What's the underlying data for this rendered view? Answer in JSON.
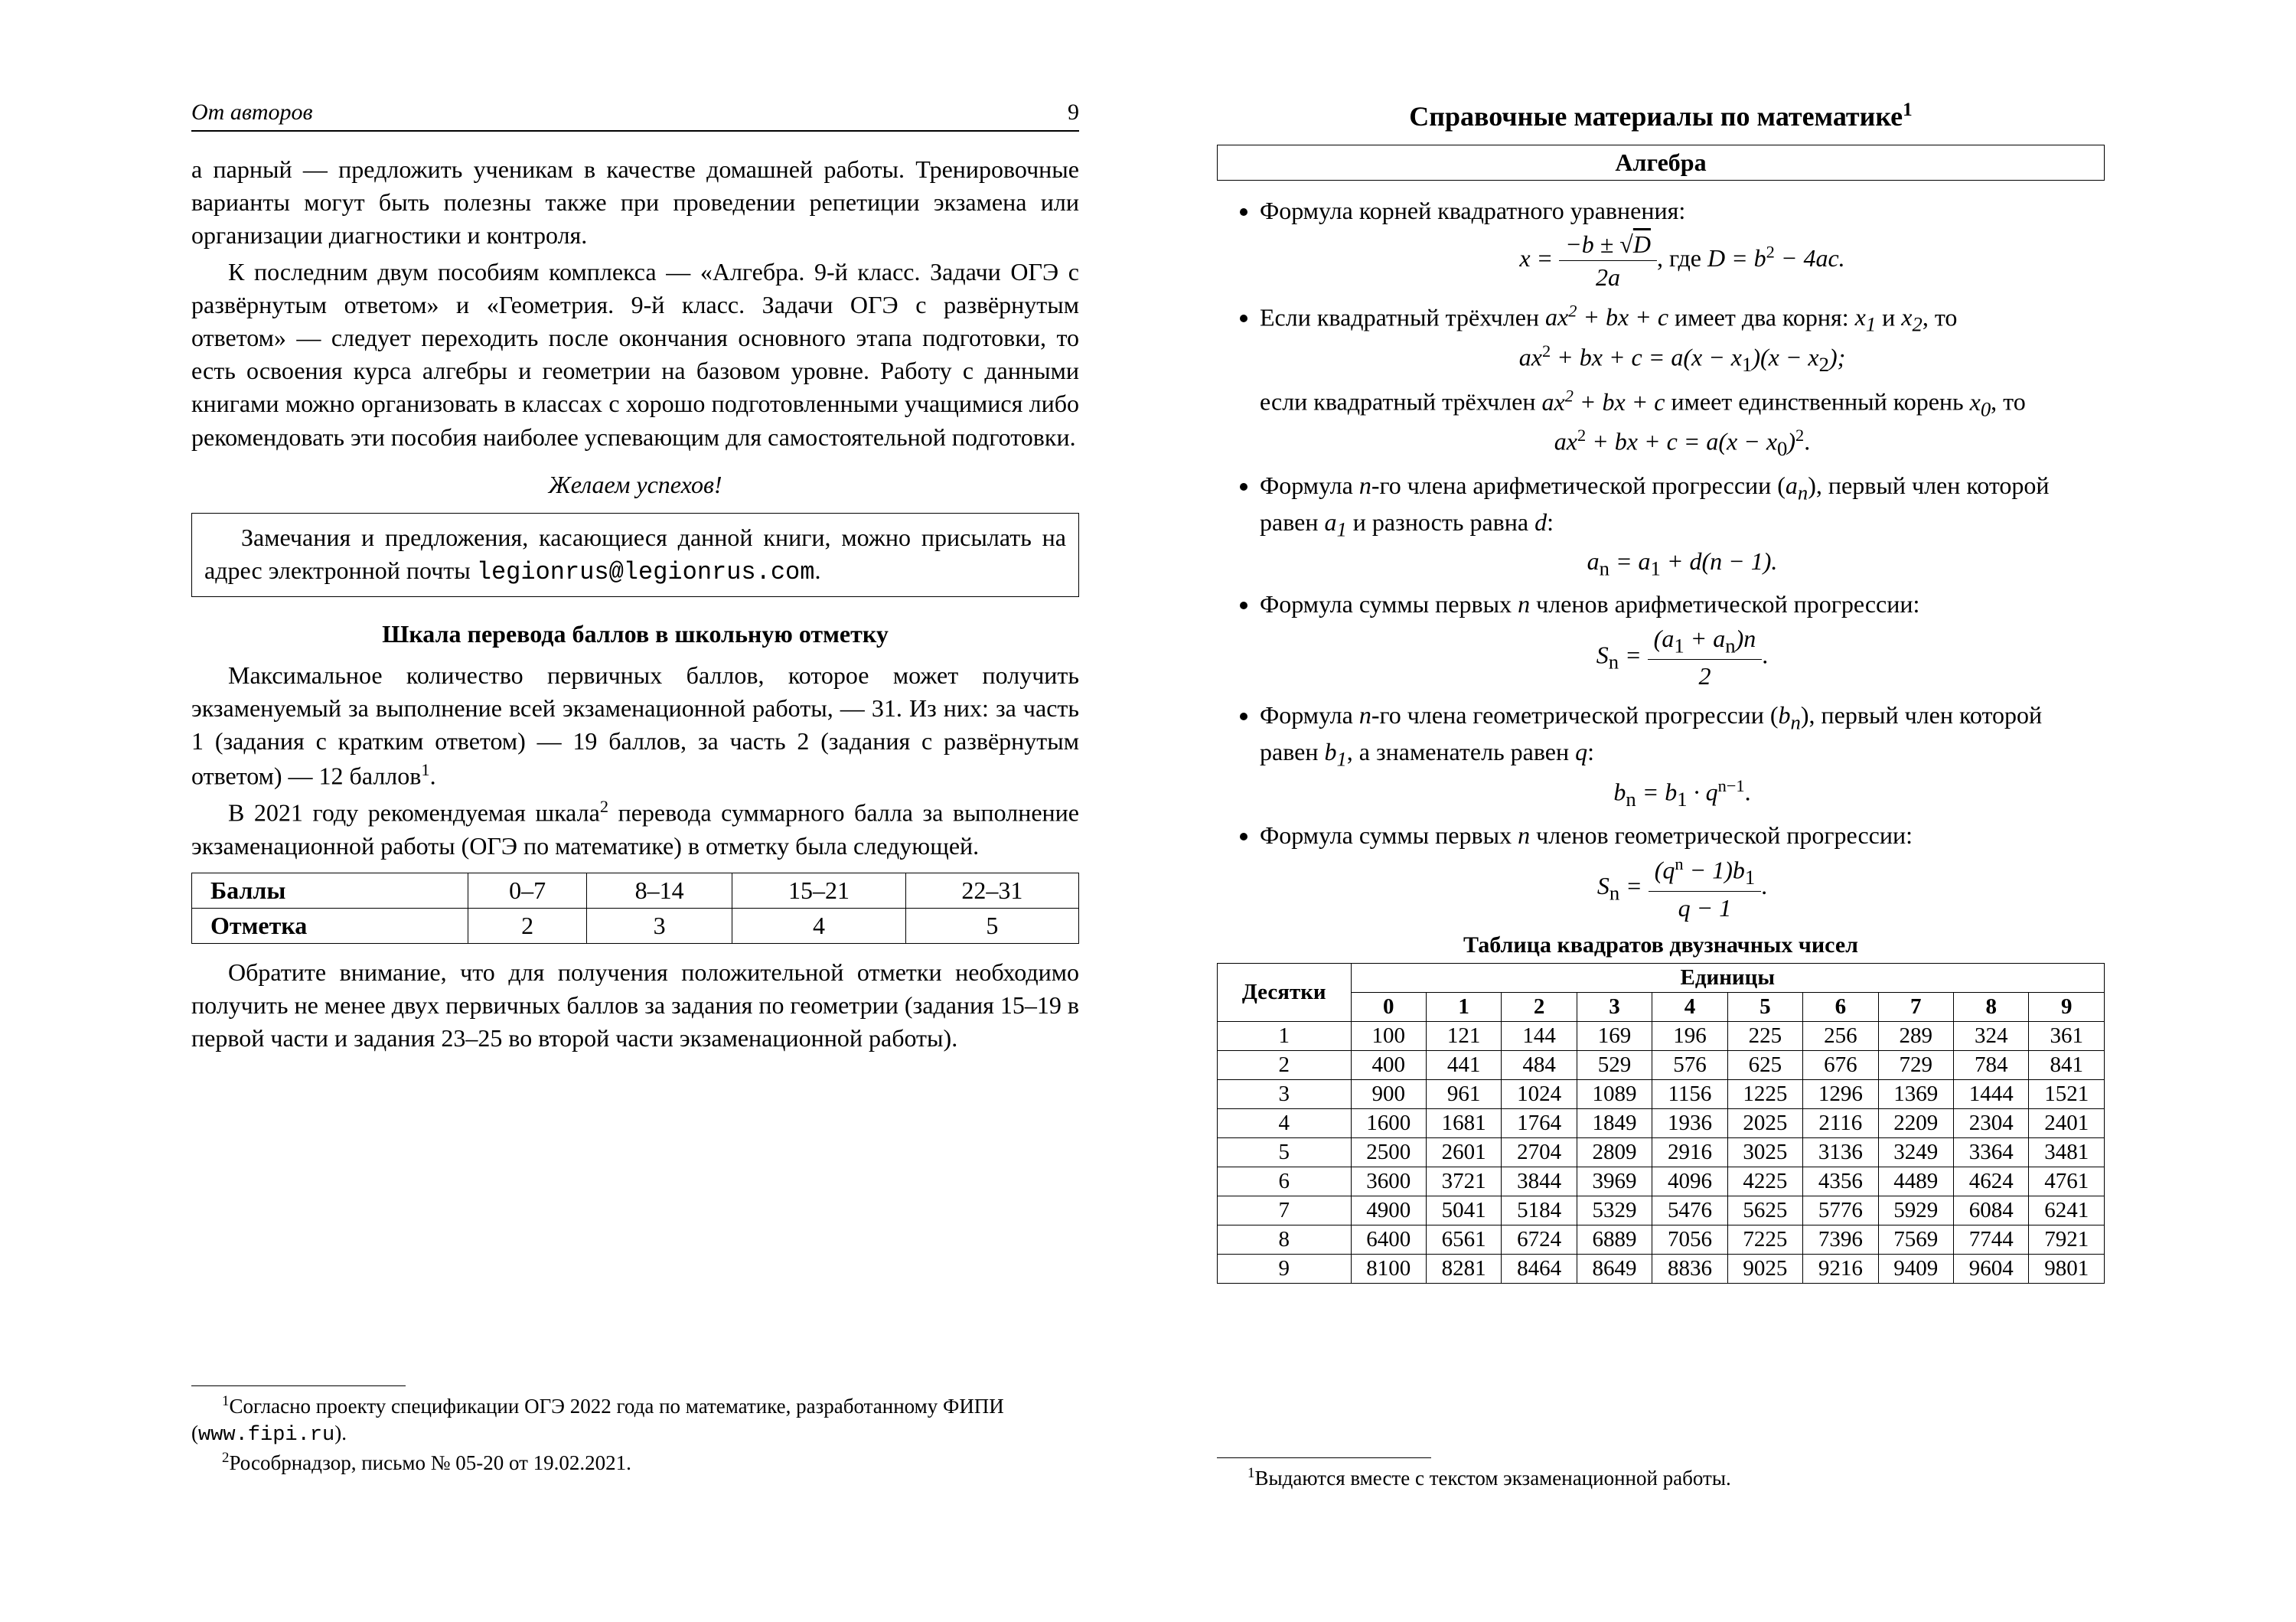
{
  "left": {
    "runningHead": "От авторов",
    "pageNumber": "9",
    "para1": "а парный — предложить ученикам в качестве домашней работы. Тренировочные варианты могут быть полезны также при проведении репетиции экзамена или организации диагностики и контроля.",
    "para2": "К последним двум пособиям комплекса — «Алгебра. 9-й класс. Задачи ОГЭ с развёрнутым ответом» и «Геометрия. 9-й класс. Задачи ОГЭ с развёрнутым ответом» — следует переходить после окончания основного этапа подготовки, то есть освоения курса алгебры и геометрии на базовом уровне. Работу с данными книгами можно организовать в классах с хорошо подготовленными учащимися либо рекомендовать эти пособия наиболее успевающим для самостоятельной подготовки.",
    "wish": "Желаем успехов!",
    "noteBox_pre": "Замечания и предложения, касающиеся данной книги, можно присылать на адрес электронной почты ",
    "noteBox_email": "legionrus@legionrus.com",
    "section2Title": "Шкала перевода баллов в школьную отметку",
    "para3_a": "Максимальное количество первичных баллов, которое может получить экзаменуемый за выполнение всей экзаменационной работы, — 31. Из них: за часть 1 (задания с кратким ответом) — 19 баллов, за часть 2 (задания с развёрнутым ответом) — 12 баллов",
    "para3_dot": ".",
    "para4_a": "В 2021 году рекомендуемая шкала",
    "para4_b": " перевода суммарного балла за выполнение экзаменационной работы (ОГЭ по математике) в отметку была следующей.",
    "gradeTable": {
      "rowLabels": [
        "Баллы",
        "Отметка"
      ],
      "cols": [
        [
          "0–7",
          "2"
        ],
        [
          "8–14",
          "3"
        ],
        [
          "15–21",
          "4"
        ],
        [
          "22–31",
          "5"
        ]
      ]
    },
    "para5": "Обратите внимание, что для получения положительной отметки необходимо получить не менее двух первичных баллов за задания по геометрии (задания 15–19 в первой части и задания 23–25 во второй части экзаменационной работы).",
    "fn1_a": "Согласно проекту спецификации ОГЭ 2022 года по математике, разработанному ФИПИ (",
    "fn1_url": "www.fipi.ru",
    "fn1_b": ").",
    "fn2": "Рособрнадзор, письмо № 05-20 от 19.02.2021."
  },
  "right": {
    "title": "Справочные материалы по математике",
    "titleSup": "1",
    "subhead": "Алгебра",
    "items": {
      "i1_lead": "Формула корней квадратного уравнения:",
      "i1_math": {
        "lhs": "x = ",
        "num": "−b ± ",
        "num_sqrtD": "D",
        "den": "2a",
        "tail_pre": ", где ",
        "tail_expr": "D = b",
        "tail_sq": "2",
        "tail_rest": " − 4ac."
      },
      "i2_a": "Если квадратный трёхчлен ",
      "i2_poly": "ax",
      "i2_sq": "2",
      "i2_rest1": " + bx + c",
      "i2_b": " имеет два корня: ",
      "i2_x1": "x",
      "i2_sub1": "1",
      "i2_and": " и ",
      "i2_x2": "x",
      "i2_sub2": "2",
      "i2_c": ", то",
      "i2_math_pre": "ax",
      "i2_math_rest": " + bx + c = a(x − x",
      "i2_math_mid": ")(x − x",
      "i2_math_end": ");",
      "i2_d": "если квадратный трёхчлен ",
      "i2_e": " имеет единственный корень ",
      "i2_x0": "x",
      "i2_sub0": "0",
      "i2_f": ", то",
      "i2_math2_rest": " + bx + c = a(x − x",
      "i2_math2_end": ")",
      "i2_math2_sq": "2",
      "i2_math2_dot": ".",
      "i3_a": "Формула ",
      "i3_n": "n",
      "i3_b": "-го члена арифметической прогрессии (",
      "i3_an": "a",
      "i3_an_sub": "n",
      "i3_c": "), первый член которой равен ",
      "i3_a1": "a",
      "i3_a1_sub": "1",
      "i3_d": " и разность равна ",
      "i3_dvar": "d",
      "i3_e": ":",
      "i3_math": "a",
      "i3_math_sub": "n",
      "i3_math_eq": " = a",
      "i3_math_sub1": "1",
      "i3_math_rest": " + d(n − 1).",
      "i4_a": "Формула суммы первых ",
      "i4_b": " членов арифметической прогрессии:",
      "i4_Sn": "S",
      "i4_num_pre": "(a",
      "i4_num_mid": " + a",
      "i4_num_post": ")n",
      "i4_den": "2",
      "i5_a": "Формула ",
      "i5_b": "-го члена геометрической прогрессии (",
      "i5_bn": "b",
      "i5_c": "), первый член которой равен ",
      "i5_b1": "b",
      "i5_d": ", а знаменатель равен ",
      "i5_q": "q",
      "i5_e": ":",
      "i5_math_pre": "b",
      "i5_math_eq": " = b",
      "i5_math_dot": " · q",
      "i5_math_exp": "n−1",
      "i5_math_end": ".",
      "i6_a": "Формула суммы первых ",
      "i6_b": " членов геометрической прогрессии:",
      "i6_num_pre": "(q",
      "i6_num_exp": "n",
      "i6_num_post": " − 1)b",
      "i6_den_pre": "q − 1"
    },
    "sqTitle": "Таблица квадратов двузначных чисел",
    "sqTable": {
      "tensLabel": "Десятки",
      "unitsLabel": "Единицы",
      "unitCols": [
        "0",
        "1",
        "2",
        "3",
        "4",
        "5",
        "6",
        "7",
        "8",
        "9"
      ],
      "rows": [
        {
          "t": "1",
          "v": [
            "100",
            "121",
            "144",
            "169",
            "196",
            "225",
            "256",
            "289",
            "324",
            "361"
          ]
        },
        {
          "t": "2",
          "v": [
            "400",
            "441",
            "484",
            "529",
            "576",
            "625",
            "676",
            "729",
            "784",
            "841"
          ]
        },
        {
          "t": "3",
          "v": [
            "900",
            "961",
            "1024",
            "1089",
            "1156",
            "1225",
            "1296",
            "1369",
            "1444",
            "1521"
          ]
        },
        {
          "t": "4",
          "v": [
            "1600",
            "1681",
            "1764",
            "1849",
            "1936",
            "2025",
            "2116",
            "2209",
            "2304",
            "2401"
          ]
        },
        {
          "t": "5",
          "v": [
            "2500",
            "2601",
            "2704",
            "2809",
            "2916",
            "3025",
            "3136",
            "3249",
            "3364",
            "3481"
          ]
        },
        {
          "t": "6",
          "v": [
            "3600",
            "3721",
            "3844",
            "3969",
            "4096",
            "4225",
            "4356",
            "4489",
            "4624",
            "4761"
          ]
        },
        {
          "t": "7",
          "v": [
            "4900",
            "5041",
            "5184",
            "5329",
            "5476",
            "5625",
            "5776",
            "5929",
            "6084",
            "6241"
          ]
        },
        {
          "t": "8",
          "v": [
            "6400",
            "6561",
            "6724",
            "6889",
            "7056",
            "7225",
            "7396",
            "7569",
            "7744",
            "7921"
          ]
        },
        {
          "t": "9",
          "v": [
            "8100",
            "8281",
            "8464",
            "8649",
            "8836",
            "9025",
            "9216",
            "9409",
            "9604",
            "9801"
          ]
        }
      ]
    },
    "fn": "Выдаются вместе с текстом экзаменационной работы."
  }
}
